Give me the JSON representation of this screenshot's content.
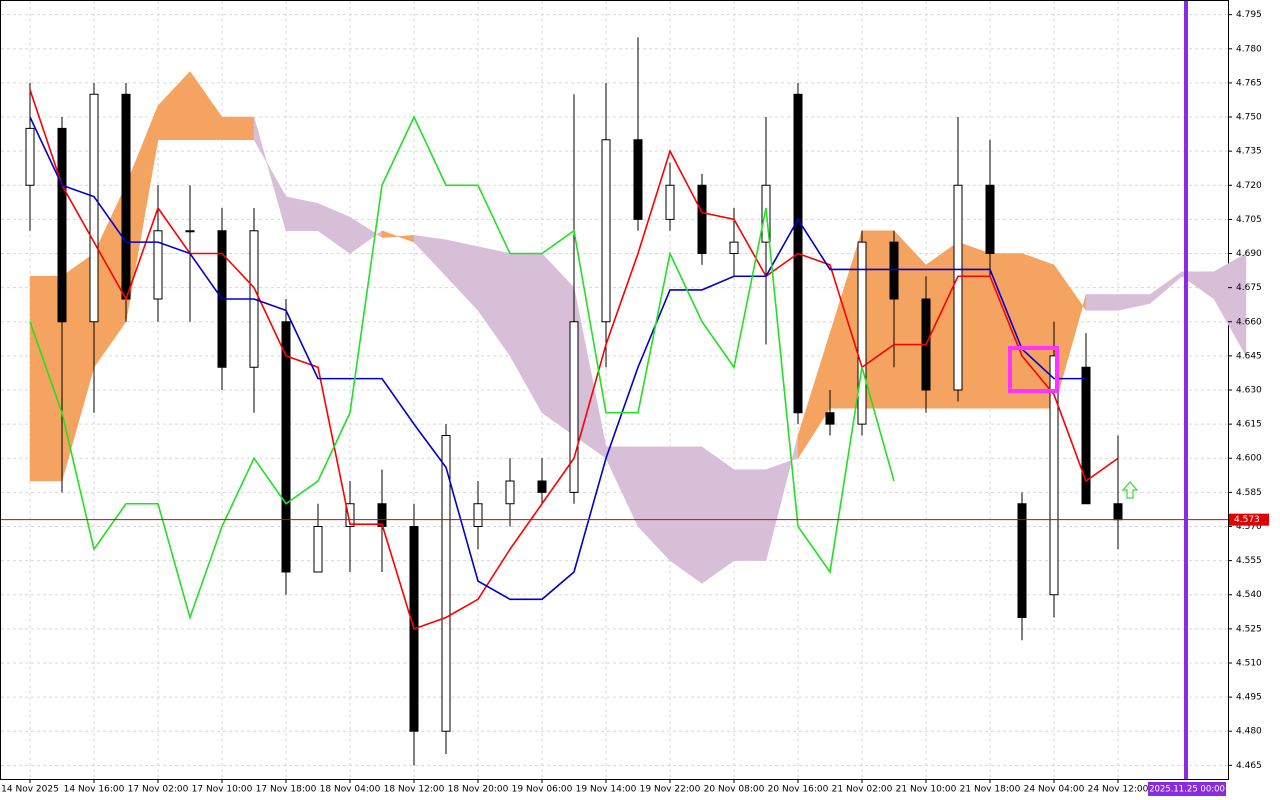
{
  "chart_data": {
    "type": "candlestick",
    "categories": [
      "14 Nov 2025",
      null,
      "14 Nov 16:00",
      null,
      "17 Nov 02:00",
      null,
      "17 Nov 10:00",
      null,
      "17 Nov 18:00",
      null,
      "18 Nov 04:00",
      null,
      "18 Nov 12:00",
      null,
      "18 Nov 20:00",
      null,
      "19 Nov 06:00",
      null,
      "19 Nov 14:00",
      null,
      "19 Nov 22:00",
      null,
      "20 Nov 08:00",
      null,
      "20 Nov 16:00",
      null,
      "21 Nov 02:00",
      null,
      "21 Nov 10:00",
      null,
      "21 Nov 18:00",
      null,
      "24 Nov 04:00",
      null,
      "24 Nov 12:00",
      null,
      null,
      null,
      null
    ],
    "open": [
      4.72,
      4.745,
      4.66,
      4.76,
      4.67,
      4.7,
      4.7,
      4.64,
      4.66,
      4.55,
      4.57,
      4.58,
      4.57,
      4.48,
      4.57,
      4.58,
      4.59,
      4.585,
      4.66,
      4.74,
      4.705,
      4.72,
      4.69,
      4.695,
      4.76,
      4.62,
      4.615,
      4.695,
      4.67,
      4.63,
      4.72,
      4.58,
      4.54,
      4.64,
      4.58,
      null,
      null,
      null,
      null
    ],
    "high": [
      4.765,
      4.75,
      4.765,
      4.765,
      4.72,
      4.72,
      4.71,
      4.71,
      4.67,
      4.58,
      4.59,
      4.595,
      4.58,
      4.615,
      4.59,
      4.6,
      4.6,
      4.76,
      4.765,
      4.785,
      4.73,
      4.725,
      4.71,
      4.75,
      4.765,
      4.63,
      4.7,
      4.7,
      4.68,
      4.75,
      4.74,
      4.585,
      4.66,
      4.655,
      4.61,
      null,
      null,
      null,
      null
    ],
    "low": [
      4.7,
      4.585,
      4.62,
      4.66,
      4.66,
      4.66,
      4.63,
      4.62,
      4.54,
      4.55,
      4.55,
      4.55,
      4.465,
      4.47,
      4.56,
      4.57,
      4.58,
      4.58,
      4.64,
      4.7,
      4.7,
      4.685,
      4.68,
      4.65,
      4.615,
      4.61,
      4.61,
      4.64,
      4.62,
      4.625,
      4.68,
      4.52,
      4.53,
      4.58,
      4.56,
      null,
      null,
      null,
      null
    ],
    "close": [
      4.745,
      4.66,
      4.76,
      4.67,
      4.7,
      4.7,
      4.64,
      4.7,
      4.55,
      4.57,
      4.58,
      4.57,
      4.48,
      4.61,
      4.58,
      4.59,
      4.585,
      4.66,
      4.74,
      4.705,
      4.72,
      4.69,
      4.695,
      4.72,
      4.62,
      4.615,
      4.695,
      4.67,
      4.63,
      4.72,
      4.69,
      4.53,
      4.645,
      4.58,
      4.573,
      null,
      null,
      null,
      null
    ],
    "bull_color": "#ffffff",
    "bear_color": "#000000",
    "series": [
      {
        "color": "#ff0000",
        "values": [
          4.762,
          4.72,
          4.695,
          4.67,
          4.71,
          4.69,
          4.69,
          4.675,
          4.645,
          4.64,
          4.571,
          4.571,
          4.525,
          4.53,
          4.538,
          4.56,
          4.58,
          4.6,
          4.65,
          4.69,
          4.735,
          4.708,
          4.705,
          4.68,
          4.69,
          4.685,
          4.64,
          4.65,
          4.65,
          4.68,
          4.68,
          4.645,
          4.628,
          4.59,
          4.6,
          null,
          null,
          null,
          null
        ]
      },
      {
        "color": "#0000cd",
        "values": [
          4.75,
          4.72,
          4.715,
          4.695,
          4.695,
          4.69,
          4.67,
          4.67,
          4.665,
          4.635,
          4.635,
          4.635,
          4.615,
          4.596,
          4.546,
          4.538,
          4.538,
          4.55,
          4.6,
          4.64,
          4.674,
          4.674,
          4.68,
          4.68,
          4.705,
          4.683,
          4.683,
          4.683,
          4.683,
          4.683,
          4.683,
          4.648,
          4.635,
          4.635,
          null,
          null,
          null,
          null,
          null
        ]
      },
      {
        "color": "#22e022",
        "values": [
          4.66,
          4.62,
          4.56,
          4.58,
          4.58,
          4.53,
          4.57,
          4.6,
          4.58,
          4.59,
          4.62,
          4.72,
          4.75,
          4.72,
          4.72,
          4.69,
          4.69,
          4.7,
          4.62,
          4.62,
          4.69,
          4.66,
          4.64,
          4.71,
          4.57,
          4.55,
          4.64,
          4.59,
          null,
          null,
          null,
          null,
          null,
          null,
          null,
          null,
          null,
          null,
          null
        ]
      }
    ],
    "cloud": {
      "up_color": "#f4a460",
      "down_color": "#d8bfd8",
      "span_a": [
        4.68,
        4.68,
        4.69,
        4.72,
        4.755,
        4.77,
        4.75,
        4.75,
        4.7,
        4.7,
        4.69,
        4.7,
        4.695,
        4.68,
        4.665,
        4.645,
        4.62,
        4.61,
        4.6,
        4.57,
        4.555,
        4.545,
        4.555,
        4.555,
        4.61,
        4.655,
        4.7,
        4.7,
        4.685,
        4.695,
        4.69,
        4.69,
        4.685,
        4.665,
        4.665,
        4.668,
        4.68,
        4.67,
        4.645
      ],
      "span_b": [
        4.59,
        4.59,
        4.64,
        4.66,
        4.74,
        4.74,
        4.74,
        4.74,
        4.715,
        4.712,
        4.706,
        4.697,
        4.698,
        4.696,
        4.693,
        4.69,
        4.69,
        4.675,
        4.605,
        4.605,
        4.605,
        4.605,
        4.595,
        4.595,
        4.6,
        4.622,
        4.622,
        4.622,
        4.622,
        4.622,
        4.622,
        4.622,
        4.622,
        4.672,
        4.672,
        4.672,
        4.682,
        4.682,
        4.69
      ]
    },
    "ylim": [
      4.459,
      4.801
    ],
    "yticks": [
      4.465,
      {
        "value": 4.48,
        "label": "4.480"
      },
      4.495,
      {
        "value": 4.51,
        "label": "4.510"
      },
      4.525,
      {
        "value": 4.54,
        "label": "4.540"
      },
      4.555,
      {
        "value": 4.57,
        "label": "4.570"
      },
      4.585,
      {
        "value": 4.6,
        "label": "4.600"
      },
      4.615,
      {
        "value": 4.63,
        "label": "4.630"
      },
      4.645,
      {
        "value": 4.66,
        "label": "4.660"
      },
      4.675,
      {
        "value": 4.69,
        "label": "4.690"
      },
      4.705,
      {
        "value": 4.72,
        "label": "4.720"
      },
      4.735,
      {
        "value": 4.75,
        "label": "4.750"
      },
      4.765,
      {
        "value": 4.78,
        "label": "4.780"
      },
      4.795
    ],
    "grid": true,
    "price_line": {
      "value": 4.573,
      "color": "#e00000"
    },
    "time_marker": {
      "label": "2025.11.25 00:00",
      "color": "#8a2be2"
    }
  }
}
